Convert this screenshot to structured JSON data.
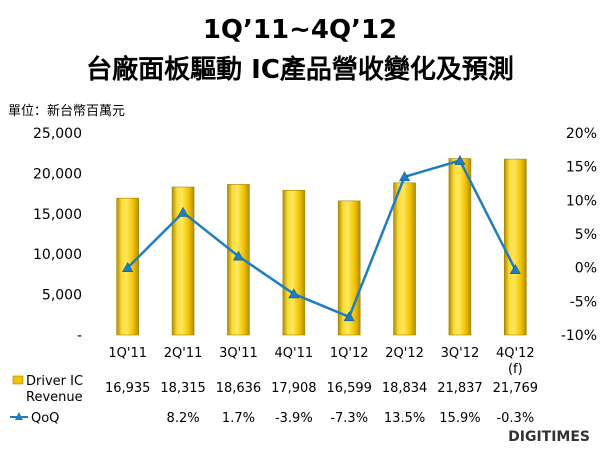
{
  "chart_data": {
    "type": "bar",
    "title": "1Q’11~4Q’12",
    "subtitle": "台廠面板驅動 IC產品營收變化及預測",
    "unit_label": "單位：新台幣百萬元",
    "categories": [
      "1Q'11",
      "2Q'11",
      "3Q'11",
      "4Q'11",
      "1Q'12",
      "2Q'12",
      "3Q'12",
      "4Q'12"
    ],
    "category_notes": [
      "",
      "",
      "",
      "",
      "",
      "",
      "",
      "(f)"
    ],
    "series": [
      {
        "name": "Driver IC Revenue",
        "type": "bar",
        "axis": "left",
        "color": "#f2c200",
        "values": [
          16935,
          18315,
          18636,
          17908,
          16599,
          18834,
          21837,
          21769
        ],
        "labels": [
          "16,935",
          "18,315",
          "18,636",
          "17,908",
          "16,599",
          "18,834",
          "21,837",
          "21,769"
        ]
      },
      {
        "name": "QoQ",
        "type": "line",
        "axis": "right",
        "color": "#1f7ec0",
        "values": [
          0.0,
          8.2,
          1.7,
          -3.9,
          -7.3,
          13.5,
          15.9,
          -0.3
        ],
        "labels": [
          "",
          "8.2%",
          "1.7%",
          "-3.9%",
          "-7.3%",
          "13.5%",
          "15.9%",
          "-0.3%"
        ]
      }
    ],
    "legend_names": [
      "Driver IC",
      "Revenue",
      "QoQ"
    ],
    "y_left": {
      "ylim": [
        0,
        25000
      ],
      "ticks": [
        0,
        5000,
        10000,
        15000,
        20000,
        25000
      ],
      "tick_labels": [
        "-",
        "5,000",
        "10,000",
        "15,000",
        "20,000",
        "25,000"
      ]
    },
    "y_right": {
      "ylim": [
        -10,
        20
      ],
      "ticks": [
        -10,
        -5,
        0,
        5,
        10,
        15,
        20
      ],
      "tick_labels": [
        "-10%",
        "-5%",
        "0%",
        "5%",
        "10%",
        "15%",
        "20%"
      ]
    },
    "grid": false,
    "legend_placement": "bottom data table"
  },
  "brand": "DIGITIMES"
}
